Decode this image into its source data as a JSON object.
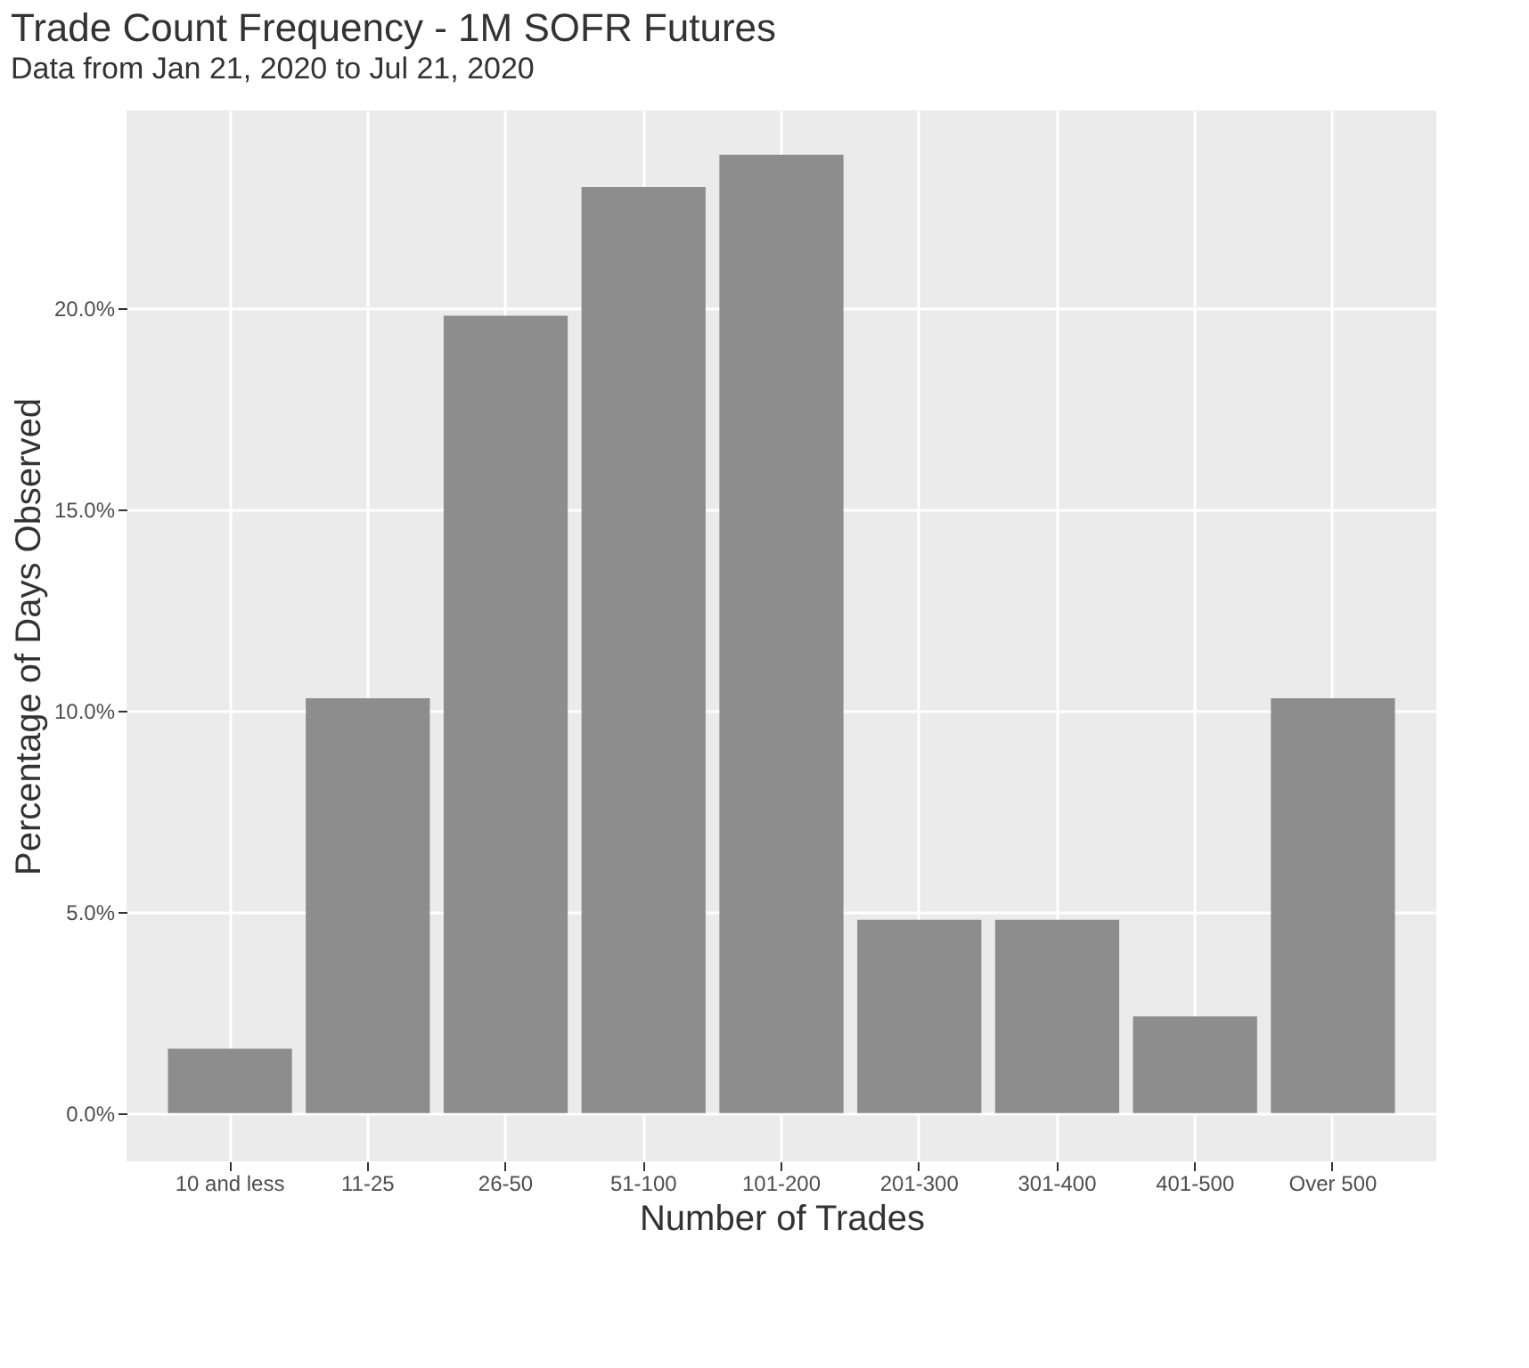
{
  "chart_data": {
    "type": "bar",
    "title": "Trade Count Frequency - 1M SOFR Futures",
    "subtitle": "Data from Jan 21, 2020 to Jul 21, 2020",
    "xlabel": "Number of Trades",
    "ylabel": "Percentage of Days Observed",
    "categories": [
      "10 and less",
      "11-25",
      "26-50",
      "51-100",
      "101-200",
      "201-300",
      "301-400",
      "401-500",
      "Over 500"
    ],
    "values": [
      1.6,
      10.3,
      19.8,
      23.0,
      23.8,
      4.8,
      4.8,
      2.4,
      10.3
    ],
    "color": "#8d8d8d",
    "ylim": [
      -1.2,
      24.9
    ],
    "yticks": [
      {
        "value": 0,
        "label": "0.0%"
      },
      {
        "value": 5,
        "label": "5.0%"
      },
      {
        "value": 10,
        "label": "10.0%"
      },
      {
        "value": 15,
        "label": "15.0%"
      },
      {
        "value": 20,
        "label": "20.0%"
      }
    ],
    "grid": true
  }
}
